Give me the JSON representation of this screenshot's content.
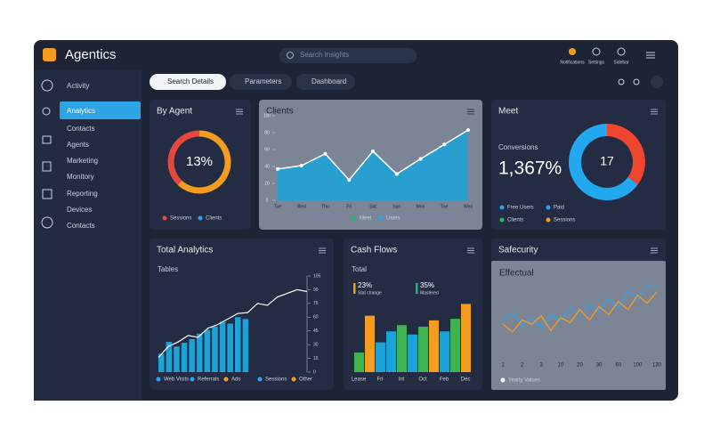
{
  "header": {
    "title": "Agentics",
    "search": "Search Insights",
    "icons": [
      "Notifications",
      "Settings",
      "Sidebar"
    ]
  },
  "sidebar": [
    "Activity",
    "Analytics",
    "Contacts",
    "Agents",
    "Marketing",
    "Monitory",
    "Reporting",
    "Devices",
    "Contacts"
  ],
  "tabs": [
    "Search Details",
    "Parameters",
    "Dashboard"
  ],
  "chart_data": [
    {
      "type": "donut",
      "title": "By Agent",
      "values": [
        62,
        38
      ],
      "colors": [
        "#f39c1f",
        "#e8473f"
      ],
      "value": 13,
      "value_label": "13%",
      "legend": [
        {
          "name": "Sessions",
          "color": "#e8473f"
        },
        {
          "name": "Clients",
          "color": "#2ea3e6"
        }
      ]
    },
    {
      "type": "area",
      "title": "Clients",
      "categories": [
        "Tue",
        "Wed",
        "Thu",
        "Fri",
        "Sat",
        "Sun",
        "Mon",
        "Tue",
        "Wed"
      ],
      "values": [
        37,
        41,
        55,
        24,
        58,
        31,
        49,
        66,
        83
      ],
      "color": "#1aa3d9",
      "ylim": [
        0,
        100
      ],
      "yticks": [
        0,
        20,
        40,
        60,
        80,
        100
      ],
      "legend": [
        {
          "name": "Meet",
          "color": "#22b573"
        },
        {
          "name": "Users",
          "color": "#2ea3e6"
        }
      ]
    },
    {
      "type": "donut-stat",
      "title": "Meet",
      "subtitle": "Conversions",
      "stat": 1367,
      "stat_label": "1,367%",
      "values": [
        35,
        65
      ],
      "colors": [
        "#f0452f",
        "#22a8f0"
      ],
      "value": 17,
      "legend": [
        {
          "name": "Free Users",
          "color": "#2ea3e6"
        },
        {
          "name": "Paid",
          "color": "#2ea3e6"
        },
        {
          "name": "Clients",
          "color": "#22b573"
        },
        {
          "name": "Sessions",
          "color": "#f39c1f"
        }
      ]
    },
    {
      "type": "bar-line",
      "title": "Total Analytics",
      "subtitle": "Tables",
      "bars": [
        20,
        33,
        28,
        32,
        36,
        42,
        46,
        50,
        55,
        53,
        60,
        58
      ],
      "line": [
        16,
        28,
        33,
        40,
        38,
        48,
        52,
        58,
        64,
        65,
        75,
        73,
        82,
        86,
        90,
        88
      ],
      "bar_color": "#1aa3d9",
      "line_color": "#ffffff",
      "ylim": [
        0,
        105
      ],
      "yticks": [
        0,
        15,
        30,
        45,
        60,
        75,
        90,
        105
      ],
      "legend": [
        {
          "name": "Web Visits",
          "color": "#2ea3e6"
        },
        {
          "name": "Referrals",
          "color": "#2ea3e6"
        },
        {
          "name": "Ads",
          "color": "#f39c1f"
        },
        {
          "name": "Sessions",
          "color": "#2ea3e6"
        },
        {
          "name": "Other",
          "color": "#f39c1f"
        }
      ]
    },
    {
      "type": "bar",
      "title": "Cash Flows",
      "subtitle": "Total",
      "stats": [
        {
          "value": 23,
          "label": "23%",
          "text": "Stat change",
          "color": "#f39c1f"
        },
        {
          "value": 35,
          "label": "35%",
          "text": "Mastered",
          "color": "#22b573"
        }
      ],
      "categories": [
        "Lease",
        null,
        "Fri",
        null,
        "Int",
        null,
        "Oct",
        null,
        "Feb",
        null,
        "Dec"
      ],
      "values": [
        25,
        72,
        38,
        52,
        60,
        48,
        58,
        66,
        52,
        68,
        87
      ],
      "colors": [
        "#3fb34f",
        "#f39c1f",
        "#1aa3d9",
        "#1aa3d9",
        "#3fb34f",
        "#1aa3d9",
        "#3fb34f",
        "#f39c1f",
        "#1aa3d9",
        "#3fb34f",
        "#f39c1f"
      ],
      "ylim": [
        0,
        100
      ]
    },
    {
      "type": "line",
      "title": "Safecurity",
      "subtitle": "Effectual",
      "categories": [
        "1",
        null,
        "2",
        null,
        "3",
        null,
        "10",
        null,
        "20",
        null,
        "30",
        null,
        "60",
        null,
        "100",
        null,
        "130"
      ],
      "series": [
        {
          "color": "#2ea3e6",
          "values": [
            45,
            55,
            38,
            48,
            35,
            52,
            44,
            60,
            50,
            65,
            55,
            72,
            60,
            82,
            70,
            88,
            86
          ]
        },
        {
          "color": "#f39c1f",
          "values": [
            40,
            30,
            45,
            40,
            50,
            32,
            48,
            42,
            58,
            45,
            62,
            52,
            68,
            58,
            76,
            66,
            80
          ]
        }
      ],
      "ylim": [
        0,
        100
      ],
      "legend": [
        {
          "name": "Yearly Values",
          "color": "#ffffff"
        }
      ]
    }
  ]
}
